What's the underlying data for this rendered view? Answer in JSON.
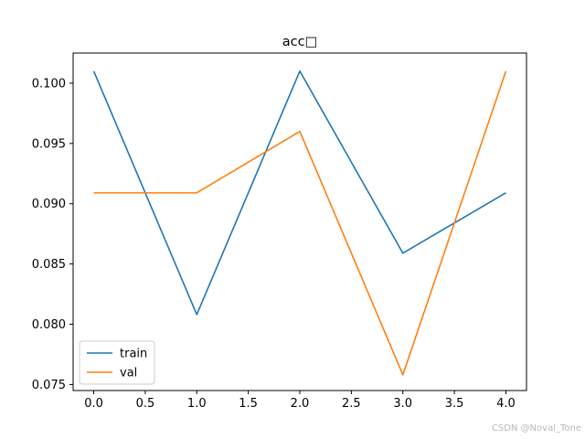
{
  "chart_data": {
    "type": "line",
    "title": "acc□",
    "xlabel": "",
    "ylabel": "",
    "x": [
      0,
      1,
      2,
      3,
      4
    ],
    "xlim": [
      -0.2,
      4.2
    ],
    "ylim": [
      0.0745,
      0.1025
    ],
    "xticks": [
      0.0,
      0.5,
      1.0,
      1.5,
      2.0,
      2.5,
      3.0,
      3.5,
      4.0
    ],
    "xtick_labels": [
      "0.0",
      "0.5",
      "1.0",
      "1.5",
      "2.0",
      "2.5",
      "3.0",
      "3.5",
      "4.0"
    ],
    "yticks": [
      0.075,
      0.08,
      0.085,
      0.09,
      0.095,
      0.1
    ],
    "ytick_labels": [
      "0.075",
      "0.080",
      "0.085",
      "0.090",
      "0.095",
      "0.100"
    ],
    "grid": false,
    "legend_position": "lower-left",
    "series": [
      {
        "name": "train",
        "color": "#1f77b4",
        "values": [
          0.101,
          0.0808,
          0.101,
          0.0859,
          0.0909
        ]
      },
      {
        "name": "val",
        "color": "#ff7f0e",
        "values": [
          0.0909,
          0.0909,
          0.096,
          0.0758,
          0.101
        ]
      }
    ]
  },
  "watermark": "CSDN @Noval_Tone"
}
